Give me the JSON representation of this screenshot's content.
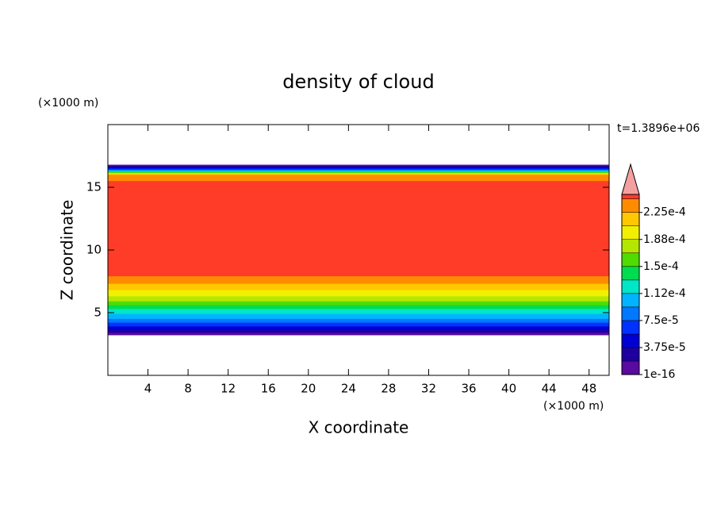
{
  "chart_data": {
    "type": "contour",
    "title": "density of cloud",
    "x_label": "X coordinate",
    "y_label": "Z coordinate",
    "x_unit": "(×1000 m)",
    "y_unit": "(×1000 m)",
    "time_label": "t=1.3896e+06",
    "xlim": [
      0,
      50
    ],
    "ylim": [
      0,
      20
    ],
    "xticks": [
      4,
      8,
      12,
      16,
      20,
      24,
      28,
      32,
      36,
      40,
      44,
      48
    ],
    "yticks": [
      5,
      10,
      15
    ],
    "colorbar": {
      "clim": [
        0,
        0.00025
      ],
      "levels": [
        1e-16,
        1.875e-05,
        3.75e-05,
        5.625e-05,
        7.5e-05,
        9.375e-05,
        0.0001125,
        0.00013125,
        0.00015,
        0.00016875,
        0.0001875,
        0.00020625,
        0.000225,
        0.00024375
      ],
      "colors": [
        "#5a0aa0",
        "#1e00a0",
        "#0000d2",
        "#0032ff",
        "#0078ff",
        "#00b4ff",
        "#00e6c8",
        "#00dc50",
        "#50dc00",
        "#b4e600",
        "#f0f000",
        "#ffc800",
        "#ff8c00",
        "#ff3c28"
      ],
      "ticks": [
        {
          "value": 1e-16,
          "label": "1e-16"
        },
        {
          "value": 3.75e-05,
          "label": "3.75e-5"
        },
        {
          "value": 7.5e-05,
          "label": "7.5e-5"
        },
        {
          "value": 0.0001125,
          "label": "1.12e-4"
        },
        {
          "value": 0.00015,
          "label": "1.5e-4"
        },
        {
          "value": 0.0001875,
          "label": "1.88e-4"
        },
        {
          "value": 0.000225,
          "label": "2.25e-4"
        }
      ]
    },
    "field": {
      "zmin": [
        3.2,
        3.4,
        3.6,
        3.9,
        4.2,
        4.5,
        4.9,
        5.3,
        5.6,
        5.9,
        6.3,
        6.8,
        7.3,
        7.9
      ],
      "zmax": [
        16.8,
        16.7,
        16.6,
        16.5,
        16.4,
        16.35,
        16.3,
        16.25,
        16.2,
        16.15,
        16.1,
        16.05,
        16.0,
        15.5
      ]
    }
  }
}
